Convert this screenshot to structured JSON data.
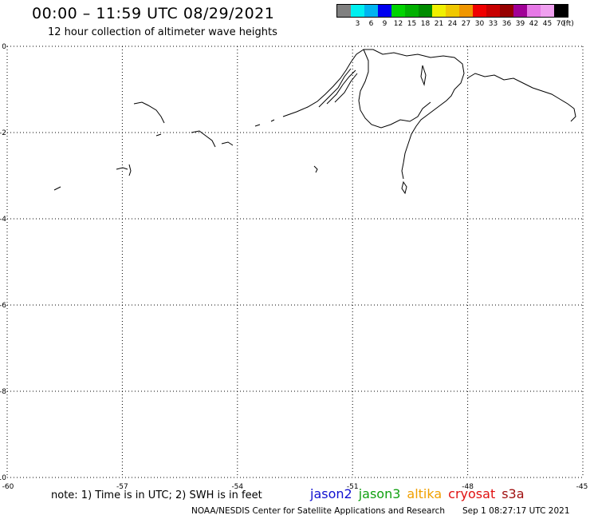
{
  "header": {
    "title": "00:00 – 11:59 UTC 08/29/2021",
    "subtitle": "12 hour collection of altimeter wave heights"
  },
  "legend": {
    "unit": "(ft)",
    "bins": [
      {
        "label": "",
        "color": "#808080"
      },
      {
        "label": "3",
        "color": "#00f0f0"
      },
      {
        "label": "6",
        "color": "#00b4f0"
      },
      {
        "label": "9",
        "color": "#0000f0"
      },
      {
        "label": "12",
        "color": "#00d400"
      },
      {
        "label": "15",
        "color": "#00b000"
      },
      {
        "label": "18",
        "color": "#008c00"
      },
      {
        "label": "21",
        "color": "#f0f000"
      },
      {
        "label": "24",
        "color": "#f0c800"
      },
      {
        "label": "27",
        "color": "#f09600"
      },
      {
        "label": "30",
        "color": "#f00000"
      },
      {
        "label": "33",
        "color": "#c80000"
      },
      {
        "label": "36",
        "color": "#960000"
      },
      {
        "label": "39",
        "color": "#a00096"
      },
      {
        "label": "42",
        "color": "#e678e6"
      },
      {
        "label": "45",
        "color": "#f0a0f0"
      },
      {
        "label": "70",
        "color": "#000000"
      }
    ]
  },
  "map": {
    "y_ticks": [
      {
        "value": 0,
        "label": "0"
      },
      {
        "value": -2,
        "label": "-2"
      },
      {
        "value": -4,
        "label": "-4"
      },
      {
        "value": -6,
        "label": "-6"
      },
      {
        "value": -8,
        "label": "-8"
      },
      {
        "value": -10,
        "label": "-10"
      }
    ],
    "x_ticks": [
      {
        "value": -60,
        "label": "-60"
      },
      {
        "value": -57,
        "label": "-57"
      },
      {
        "value": -54,
        "label": "-54"
      },
      {
        "value": -51,
        "label": "-51"
      },
      {
        "value": -48,
        "label": "-48"
      },
      {
        "value": -45,
        "label": "-45"
      }
    ],
    "lat_range": [
      -10,
      0
    ],
    "lon_range": [
      -60,
      -45
    ],
    "grid": "dotted"
  },
  "footer": {
    "note": "note: 1) Time is in UTC; 2) SWH is in feet",
    "satellites": [
      {
        "name": "jason2",
        "color": "#1010d0"
      },
      {
        "name": "jason3",
        "color": "#10a010"
      },
      {
        "name": "altika",
        "color": "#f0a000"
      },
      {
        "name": "cryosat",
        "color": "#e01010"
      },
      {
        "name": "s3a",
        "color": "#a01010"
      }
    ],
    "credit": "NOAA/NESDIS Center for Satellite Applications and Research",
    "timestamp": "Sep  1 08:27:17 UTC 2021"
  }
}
